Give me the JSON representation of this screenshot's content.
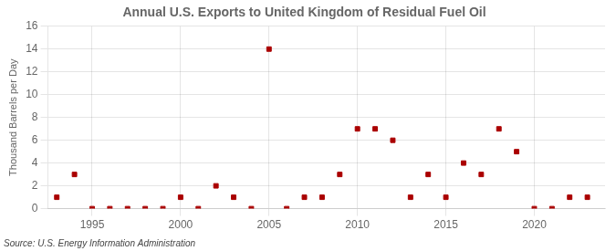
{
  "chart_data": {
    "type": "scatter",
    "title": "Annual U.S. Exports to United Kingdom of Residual Fuel Oil",
    "ylabel": "Thousand Barrels per Day",
    "annotations": [
      "Source: U.S. Energy Information Administration"
    ],
    "x": [
      1993,
      1994,
      1995,
      1996,
      1997,
      1998,
      1999,
      2000,
      2001,
      2002,
      2003,
      2004,
      2005,
      2006,
      2007,
      2008,
      2009,
      2010,
      2011,
      2012,
      2013,
      2014,
      2015,
      2016,
      2017,
      2018,
      2019,
      2020,
      2021,
      2022,
      2023
    ],
    "values": [
      1,
      3,
      0,
      0,
      0,
      0,
      0,
      1,
      0,
      2,
      1,
      0,
      14,
      0,
      1,
      1,
      3,
      7,
      7,
      6,
      1,
      3,
      1,
      4,
      3,
      7,
      5,
      0,
      0,
      1,
      1
    ],
    "color": "#aa0000",
    "marker": "square",
    "xlim": [
      1992.5,
      2024
    ],
    "ylim": [
      0,
      16
    ],
    "xticks": [
      1995,
      2000,
      2005,
      2010,
      2015,
      2020
    ],
    "yticks": [
      0,
      2,
      4,
      6,
      8,
      10,
      12,
      14,
      16
    ],
    "grid": true
  }
}
